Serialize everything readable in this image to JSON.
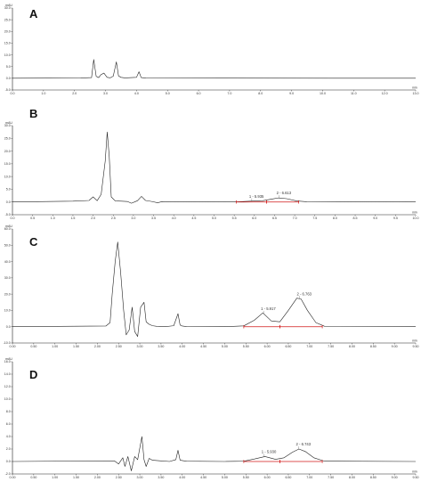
{
  "colors": {
    "trace": "#222222",
    "integration": "#d01818",
    "axis": "#222222"
  },
  "chart_data": [
    {
      "type": "line",
      "panel": "A",
      "yunit": "mAU",
      "xunit": "min",
      "xlim": [
        0,
        13
      ],
      "ylim": [
        -5,
        30
      ],
      "xticks": [
        0,
        1,
        2,
        3,
        4,
        5,
        6,
        7,
        8,
        9,
        10,
        11,
        12,
        13
      ],
      "yticks": [
        -5,
        0,
        5,
        10,
        15,
        20,
        25,
        30
      ],
      "xtick_labels": [
        "0.0",
        "1.0",
        "2.0",
        "3.0",
        "4.0",
        "5.0",
        "6.0",
        "7.0",
        "8.0",
        "9.0",
        "10.0",
        "11.0",
        "12.0",
        "13.0"
      ],
      "ytick_labels": [
        "-5.0",
        "0.0",
        "5.0",
        "10.0",
        "15.0",
        "20.0",
        "25.0",
        "30.0"
      ],
      "series": [
        {
          "x": [
            0,
            2.2,
            2.55,
            2.62,
            2.7,
            2.78,
            2.85,
            2.95,
            3.05,
            3.15,
            3.25,
            3.35,
            3.42,
            3.5,
            3.6,
            3.7,
            4.0,
            4.08,
            4.15,
            4.3,
            13
          ],
          "y": [
            0,
            0.1,
            0.3,
            8.0,
            0.8,
            0.3,
            1.5,
            2.2,
            0.4,
            0.2,
            0.9,
            7.0,
            1.0,
            0.4,
            0.2,
            0.2,
            0.4,
            2.8,
            0.3,
            0.1,
            0
          ]
        }
      ]
    },
    {
      "type": "line",
      "panel": "B",
      "yunit": "mAU",
      "xunit": "min",
      "xlim": [
        0,
        10
      ],
      "ylim": [
        -5,
        30
      ],
      "xticks": [
        0,
        0.5,
        1,
        1.5,
        2,
        2.5,
        3,
        3.5,
        4,
        4.5,
        5,
        5.5,
        6,
        6.5,
        7,
        7.5,
        8,
        8.5,
        9,
        9.5,
        10
      ],
      "yticks": [
        -5,
        0,
        5,
        10,
        15,
        20,
        25,
        30
      ],
      "xtick_labels": [
        "0.0",
        "0.5",
        "1.0",
        "1.5",
        "2.0",
        "2.5",
        "3.0",
        "3.5",
        "4.0",
        "4.5",
        "5.0",
        "5.5",
        "6.0",
        "6.5",
        "7.0",
        "7.5",
        "8.0",
        "8.5",
        "9.0",
        "9.5",
        "10.0"
      ],
      "ytick_labels": [
        "-5.0",
        "0.0",
        "5.0",
        "10.0",
        "15.0",
        "20.0",
        "25.0",
        "30.0"
      ],
      "peaks": [
        {
          "label": "1 - 5.935",
          "start": 5.55,
          "end": 6.3,
          "apex": 5.935
        },
        {
          "label": "2 - 6.613",
          "start": 6.3,
          "end": 7.1,
          "apex": 6.613
        }
      ],
      "series": [
        {
          "x": [
            0,
            1.5,
            1.9,
            2.0,
            2.1,
            2.2,
            2.3,
            2.35,
            2.4,
            2.45,
            2.55,
            2.7,
            2.85,
            2.95,
            3.1,
            3.2,
            3.3,
            3.45,
            3.6,
            3.7,
            3.8,
            4.2,
            5.5,
            5.9,
            6.2,
            6.45,
            6.6,
            6.8,
            7.05,
            7.3,
            10
          ],
          "y": [
            0,
            0.3,
            0.6,
            2.0,
            0.5,
            3.0,
            16.0,
            27.5,
            18.0,
            2.0,
            0.4,
            0.3,
            0.2,
            -0.5,
            0.5,
            2.2,
            0.6,
            0.2,
            -0.3,
            0.1,
            0.0,
            0.1,
            0.0,
            0.3,
            0.5,
            1.2,
            1.6,
            1.3,
            0.4,
            0.1,
            0
          ]
        }
      ]
    },
    {
      "type": "line",
      "panel": "C",
      "yunit": "mAU",
      "xunit": "min",
      "xlim": [
        0,
        9.5
      ],
      "ylim": [
        -10,
        60
      ],
      "xticks": [
        0,
        0.5,
        1,
        1.5,
        2,
        2.5,
        3,
        3.5,
        4,
        4.5,
        5,
        5.5,
        6,
        6.5,
        7,
        7.5,
        8,
        8.5,
        9,
        9.5
      ],
      "yticks": [
        -10,
        0,
        10,
        20,
        30,
        40,
        50,
        60
      ],
      "xtick_labels": [
        "0.00",
        "0.50",
        "1.00",
        "1.50",
        "2.00",
        "2.50",
        "3.00",
        "3.50",
        "4.00",
        "4.50",
        "5.00",
        "5.50",
        "6.00",
        "6.50",
        "7.00",
        "7.50",
        "8.00",
        "8.50",
        "9.00",
        "9.50"
      ],
      "ytick_labels": [
        "-10.0",
        "0.0",
        "10.0",
        "20.0",
        "30.0",
        "40.0",
        "50.0",
        "60.0"
      ],
      "peaks": [
        {
          "label": "1 - 5.917",
          "start": 5.45,
          "end": 6.3,
          "apex": 5.917
        },
        {
          "label": "2 - 6.763",
          "start": 6.3,
          "end": 7.3,
          "apex": 6.763
        }
      ],
      "series": [
        {
          "x": [
            0,
            2.2,
            2.3,
            2.35,
            2.42,
            2.48,
            2.55,
            2.62,
            2.68,
            2.75,
            2.82,
            2.88,
            2.95,
            3.02,
            3.1,
            3.15,
            3.22,
            3.3,
            3.4,
            3.6,
            3.8,
            3.9,
            3.95,
            4.0,
            4.1,
            5.0,
            5.45,
            5.7,
            5.9,
            6.1,
            6.3,
            6.5,
            6.7,
            6.8,
            6.95,
            7.15,
            7.35,
            9.5
          ],
          "y": [
            0,
            0.4,
            2.5,
            20.0,
            40.0,
            52.0,
            33.0,
            10.0,
            -5.0,
            -2.0,
            12.0,
            -3.0,
            -6.0,
            12.0,
            15.0,
            3.0,
            1.5,
            0.6,
            0.2,
            0.0,
            0.6,
            8.0,
            1.0,
            0.4,
            0.1,
            0.0,
            0.5,
            4.0,
            8.5,
            3.5,
            3.0,
            10.0,
            17.5,
            17.0,
            10.0,
            2.5,
            0.3,
            0
          ]
        }
      ]
    },
    {
      "type": "line",
      "panel": "D",
      "yunit": "mAU",
      "xunit": "min",
      "xlim": [
        0,
        9.5
      ],
      "ylim": [
        -2,
        16
      ],
      "xticks": [
        0,
        0.5,
        1,
        1.5,
        2,
        2.5,
        3,
        3.5,
        4,
        4.5,
        5,
        5.5,
        6,
        6.5,
        7,
        7.5,
        8,
        8.5,
        9,
        9.5
      ],
      "yticks": [
        -2,
        0,
        2,
        4,
        6,
        8,
        10,
        12,
        14,
        16
      ],
      "xtick_labels": [
        "0.00",
        "0.50",
        "1.00",
        "1.50",
        "2.00",
        "2.50",
        "3.00",
        "3.50",
        "4.00",
        "4.50",
        "5.00",
        "5.50",
        "6.00",
        "6.50",
        "7.00",
        "7.50",
        "8.00",
        "8.50",
        "9.00",
        "9.50"
      ],
      "ytick_labels": [
        "-2.0",
        "0.0",
        "2.0",
        "4.0",
        "6.0",
        "8.0",
        "10.0",
        "12.0",
        "14.0",
        "16.0"
      ],
      "peaks": [
        {
          "label": "1 - 5.930",
          "start": 5.45,
          "end": 6.3,
          "apex": 5.93
        },
        {
          "label": "2 - 6.743",
          "start": 6.3,
          "end": 7.3,
          "apex": 6.743
        }
      ],
      "series": [
        {
          "x": [
            0,
            2.4,
            2.5,
            2.6,
            2.65,
            2.72,
            2.8,
            2.88,
            2.95,
            3.05,
            3.1,
            3.15,
            3.22,
            3.3,
            3.5,
            3.7,
            3.85,
            3.9,
            3.95,
            4.1,
            5.0,
            5.45,
            5.7,
            5.95,
            6.2,
            6.4,
            6.6,
            6.75,
            6.9,
            7.1,
            7.35,
            9.5
          ],
          "y": [
            0,
            0.1,
            -0.4,
            0.6,
            -0.8,
            0.8,
            -1.5,
            0.8,
            0.3,
            4.0,
            0.3,
            -0.8,
            0.5,
            0.2,
            0.1,
            0.0,
            0.3,
            1.8,
            0.2,
            0.05,
            0.0,
            0.05,
            0.4,
            0.8,
            0.35,
            0.6,
            1.5,
            2.0,
            1.6,
            0.6,
            0.05,
            0
          ]
        }
      ]
    }
  ]
}
